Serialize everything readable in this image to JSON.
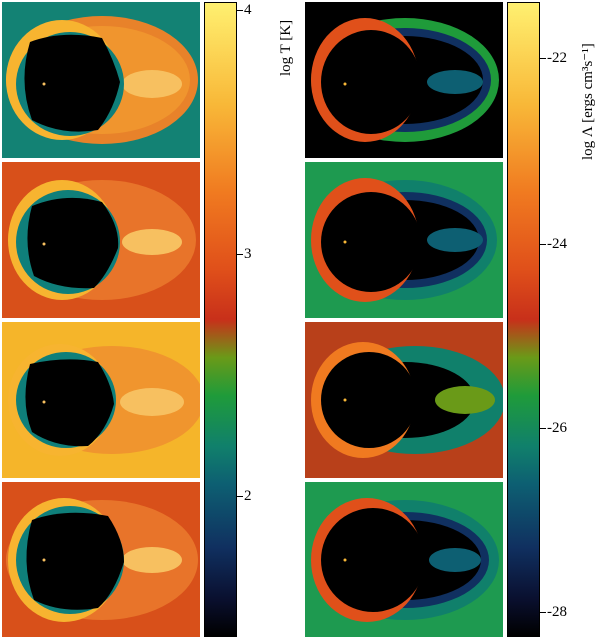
{
  "colorbar_temperature": {
    "title": "log T [K]",
    "tick_labels": [
      "4",
      "3",
      "2"
    ],
    "range": [
      1.45,
      4.05
    ]
  },
  "colorbar_cooling": {
    "title": "log Λ [ergs cm³s⁻¹]",
    "tick_labels": [
      "-22",
      "-24",
      "-26",
      "-28"
    ],
    "range": [
      -28.2,
      -20.9
    ]
  },
  "panels_left": [
    {
      "background": "#138274",
      "name": "temperature-panel-1"
    },
    {
      "background": "#d8501a",
      "name": "temperature-panel-2"
    },
    {
      "background": "#f5b52a",
      "name": "temperature-panel-3"
    },
    {
      "background": "#d8501a",
      "name": "temperature-panel-4"
    }
  ],
  "panels_right": [
    {
      "background": "#000000",
      "name": "cooling-panel-1"
    },
    {
      "background": "#1e9a50",
      "name": "cooling-panel-2"
    },
    {
      "background": "#b8401a",
      "name": "cooling-panel-3"
    },
    {
      "background": "#1e9a50",
      "name": "cooling-panel-4"
    }
  ]
}
